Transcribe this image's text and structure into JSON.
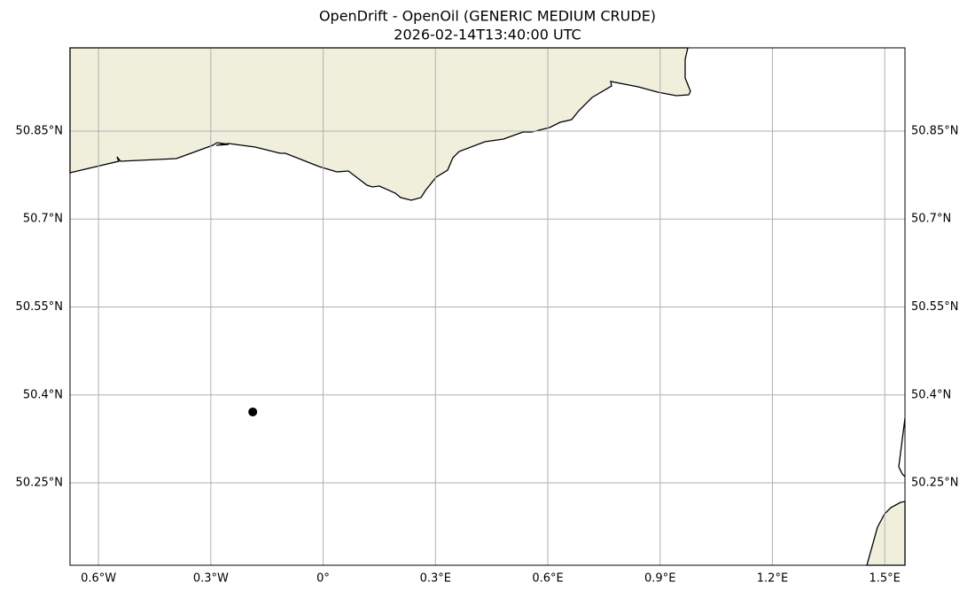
{
  "chart_data": {
    "type": "scatter",
    "title": "OpenDrift - OpenOil (GENERIC MEDIUM CRUDE)",
    "subtitle": "2026-02-14T13:40:00 UTC",
    "x": [
      -0.188
    ],
    "y": [
      50.371
    ],
    "color": "#000000",
    "xlim": [
      -0.676,
      1.554
    ],
    "ylim": [
      50.1095,
      50.992
    ],
    "xticks": [
      {
        "value": -0.6,
        "label": "0.6°W"
      },
      {
        "value": -0.3,
        "label": "0.3°W"
      },
      {
        "value": 0,
        "label": "0°"
      },
      {
        "value": 0.3,
        "label": "0.3°E"
      },
      {
        "value": 0.6,
        "label": "0.6°E"
      },
      {
        "value": 0.9,
        "label": "0.9°E"
      },
      {
        "value": 1.2,
        "label": "1.2°E"
      },
      {
        "value": 1.5,
        "label": "1.5°E"
      }
    ],
    "yticks": [
      {
        "value": 50.25,
        "label": "50.25°N"
      },
      {
        "value": 50.4,
        "label": "50.4°N"
      },
      {
        "value": 50.55,
        "label": "50.55°N"
      },
      {
        "value": 50.7,
        "label": "50.7°N"
      },
      {
        "value": 50.85,
        "label": "50.85°N"
      }
    ],
    "grid": true,
    "land_color": "#efefdc"
  }
}
